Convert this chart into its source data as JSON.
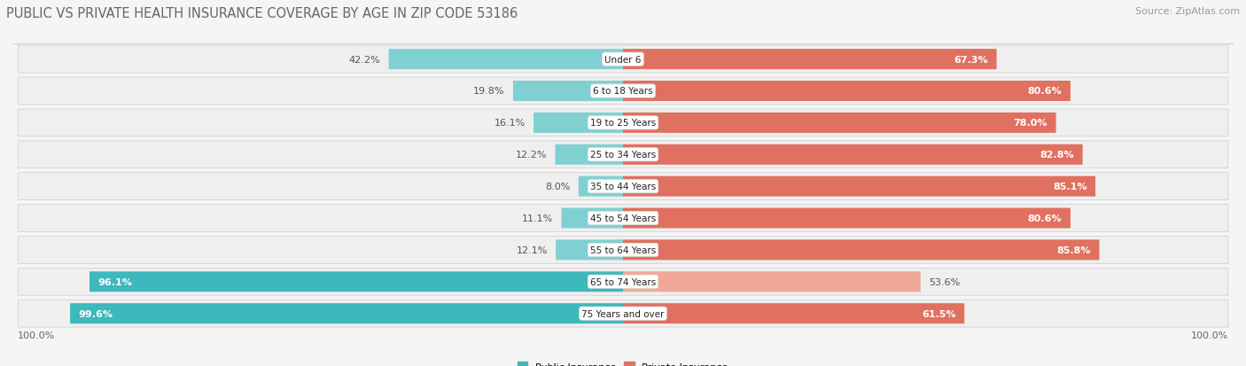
{
  "title": "PUBLIC VS PRIVATE HEALTH INSURANCE COVERAGE BY AGE IN ZIP CODE 53186",
  "source": "Source: ZipAtlas.com",
  "categories": [
    "Under 6",
    "6 to 18 Years",
    "19 to 25 Years",
    "25 to 34 Years",
    "35 to 44 Years",
    "45 to 54 Years",
    "55 to 64 Years",
    "65 to 74 Years",
    "75 Years and over"
  ],
  "public_values": [
    42.2,
    19.8,
    16.1,
    12.2,
    8.0,
    11.1,
    12.1,
    96.1,
    99.6
  ],
  "private_values": [
    67.3,
    80.6,
    78.0,
    82.8,
    85.1,
    80.6,
    85.8,
    53.6,
    61.5
  ],
  "public_color_dark": "#3db8bc",
  "public_color_light": "#80d0d2",
  "private_color_dark": "#e07060",
  "private_color_light": "#f0a898",
  "bg_color": "#f5f5f5",
  "row_bg_color": "#e8e8e8",
  "row_bg_white": "#f0f0f0",
  "center_bg": "#ffffff",
  "axis_label_left": "100.0%",
  "axis_label_right": "100.0%",
  "legend_public": "Public Insurance",
  "legend_private": "Private Insurance",
  "title_fontsize": 10.5,
  "source_fontsize": 8,
  "label_fontsize": 8,
  "bar_label_fontsize": 8,
  "category_fontsize": 7.5
}
